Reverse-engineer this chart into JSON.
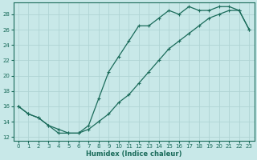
{
  "xlabel": "Humidex (Indice chaleur)",
  "ylabel": "",
  "bg_color": "#c8e8e8",
  "grid_color": "#b0d4d4",
  "line_color": "#1a6b5a",
  "xlim": [
    -0.5,
    23.5
  ],
  "ylim": [
    11.5,
    29.5
  ],
  "xticks": [
    0,
    1,
    2,
    3,
    4,
    5,
    6,
    7,
    8,
    9,
    10,
    11,
    12,
    13,
    14,
    15,
    16,
    17,
    18,
    19,
    20,
    21,
    22,
    23
  ],
  "yticks": [
    12,
    14,
    16,
    18,
    20,
    22,
    24,
    26,
    28
  ],
  "line1_x": [
    0,
    1,
    2,
    3,
    4,
    5,
    6,
    7,
    8,
    9,
    10,
    11,
    12,
    13,
    14,
    15,
    16,
    17,
    18,
    19,
    20,
    21,
    22,
    23
  ],
  "line1_y": [
    16.0,
    15.0,
    14.5,
    13.5,
    12.5,
    12.5,
    12.5,
    13.5,
    17.0,
    20.5,
    22.5,
    24.5,
    26.5,
    26.5,
    27.5,
    28.5,
    28.0,
    29.0,
    28.5,
    28.5,
    29.0,
    29.0,
    28.5,
    26.0
  ],
  "line2_x": [
    0,
    1,
    2,
    3,
    4,
    5,
    6,
    7,
    8,
    9,
    10,
    11,
    12,
    13,
    14,
    15,
    16,
    17,
    18,
    19,
    20,
    21,
    22,
    23
  ],
  "line2_y": [
    16.0,
    15.0,
    14.5,
    13.5,
    13.0,
    12.5,
    12.5,
    13.0,
    14.0,
    15.0,
    16.5,
    17.5,
    19.0,
    20.5,
    22.0,
    23.5,
    24.5,
    25.5,
    26.5,
    27.5,
    28.0,
    28.5,
    28.5,
    26.0
  ]
}
